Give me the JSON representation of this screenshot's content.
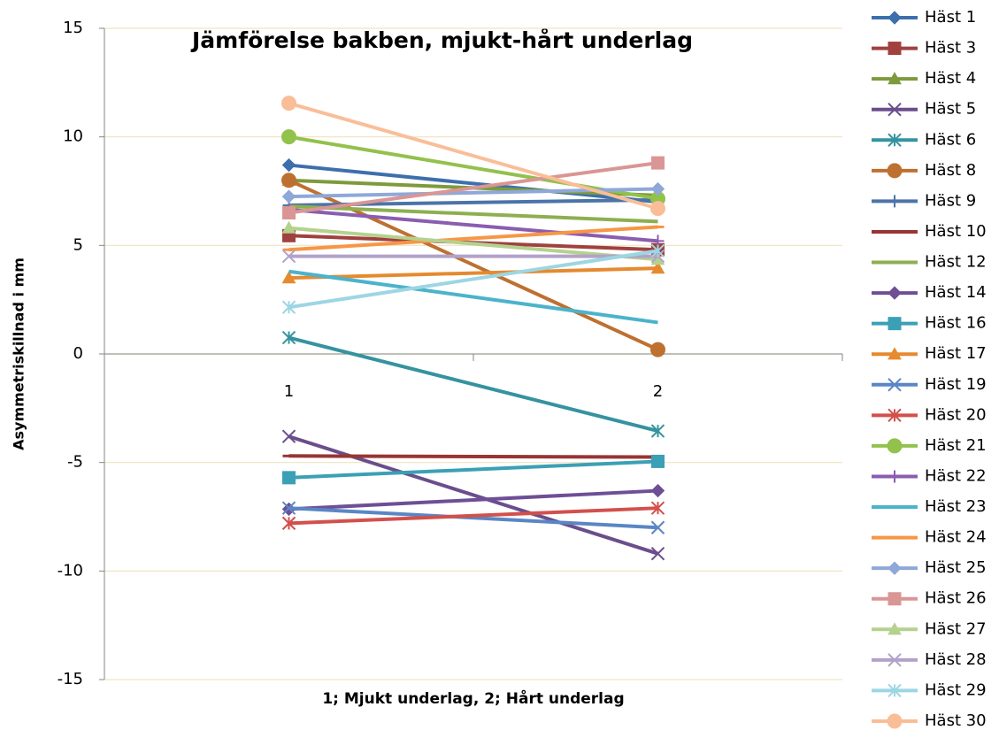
{
  "chart_data": {
    "type": "line",
    "title": "Jämförelse bakben, mjukt-hårt underlag",
    "y_label": "Asymmetriskillnad i mm",
    "x_label": "1; Mjukt underlag, 2; Hårt underlag",
    "categories": [
      "1",
      "2"
    ],
    "ylim": [
      -15,
      15
    ],
    "yticks": [
      -15,
      -10,
      -5,
      0,
      5,
      10,
      15
    ],
    "grid": true,
    "legend": "right",
    "series": [
      {
        "name": "Häst 1",
        "color": "#3D6FAD",
        "marker": "diamond",
        "values": [
          8.7,
          7.0
        ]
      },
      {
        "name": "Häst 3",
        "color": "#A0413F",
        "marker": "square",
        "values": [
          5.45,
          4.8
        ]
      },
      {
        "name": "Häst 4",
        "color": "#7E9A3C",
        "marker": "triangle",
        "values": [
          8.0,
          7.3
        ]
      },
      {
        "name": "Häst 5",
        "color": "#6A4E8C",
        "marker": "x",
        "values": [
          -3.8,
          -9.2
        ]
      },
      {
        "name": "Häst 6",
        "color": "#35939F",
        "marker": "star",
        "values": [
          0.75,
          -3.55
        ]
      },
      {
        "name": "Häst 8",
        "color": "#BE7030",
        "marker": "circle",
        "values": [
          8.0,
          0.2
        ]
      },
      {
        "name": "Häst 9",
        "color": "#4B74A8",
        "marker": "plus",
        "values": [
          6.85,
          7.1
        ]
      },
      {
        "name": "Häst 10",
        "color": "#993434",
        "marker": "dash",
        "values": [
          -4.7,
          -4.75
        ]
      },
      {
        "name": "Häst 12",
        "color": "#8DAF50",
        "marker": "none",
        "values": [
          6.8,
          6.1
        ]
      },
      {
        "name": "Häst 14",
        "color": "#6E4F96",
        "marker": "diamond",
        "values": [
          -7.15,
          -6.3
        ]
      },
      {
        "name": "Häst 16",
        "color": "#3BA0B5",
        "marker": "square",
        "values": [
          -5.7,
          -4.95
        ]
      },
      {
        "name": "Häst 17",
        "color": "#E58A2F",
        "marker": "triangle",
        "values": [
          3.5,
          3.95
        ]
      },
      {
        "name": "Häst 19",
        "color": "#5A86C5",
        "marker": "x",
        "values": [
          -7.1,
          -8.0
        ]
      },
      {
        "name": "Häst 20",
        "color": "#D2504C",
        "marker": "star",
        "values": [
          -7.8,
          -7.1
        ]
      },
      {
        "name": "Häst 21",
        "color": "#92C14C",
        "marker": "circle",
        "values": [
          10.0,
          7.15
        ]
      },
      {
        "name": "Häst 22",
        "color": "#8A5DB0",
        "marker": "plus",
        "values": [
          6.65,
          5.2
        ]
      },
      {
        "name": "Häst 23",
        "color": "#4BB3CC",
        "marker": "none",
        "values": [
          3.8,
          1.45
        ]
      },
      {
        "name": "Häst 24",
        "color": "#F79646",
        "marker": "dash",
        "values": [
          4.8,
          5.85
        ]
      },
      {
        "name": "Häst 25",
        "color": "#8EA8D8",
        "marker": "diamond",
        "values": [
          7.25,
          7.6
        ]
      },
      {
        "name": "Häst 26",
        "color": "#D99694",
        "marker": "square",
        "values": [
          6.5,
          8.8
        ]
      },
      {
        "name": "Häst 27",
        "color": "#B5D18E",
        "marker": "triangle",
        "values": [
          5.8,
          4.35
        ]
      },
      {
        "name": "Häst 28",
        "color": "#B2A2C9",
        "marker": "x",
        "values": [
          4.5,
          4.5
        ]
      },
      {
        "name": "Häst 29",
        "color": "#9DD6E3",
        "marker": "star",
        "values": [
          2.15,
          4.75
        ]
      },
      {
        "name": "Häst 30",
        "color": "#F9BE98",
        "marker": "circle",
        "values": [
          11.55,
          6.7
        ]
      }
    ]
  }
}
